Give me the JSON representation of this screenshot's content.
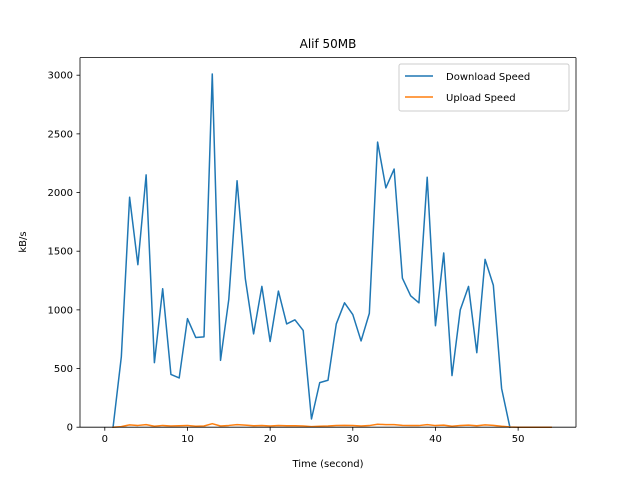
{
  "chart_data": {
    "type": "line",
    "title": "Alif 50MB",
    "xlabel": "Time (second)",
    "ylabel": "kB/s",
    "xlim": [
      -3,
      57
    ],
    "ylim": [
      0,
      3150
    ],
    "xticks": [
      0,
      10,
      20,
      30,
      40,
      50
    ],
    "yticks": [
      0,
      500,
      1000,
      1500,
      2000,
      2500,
      3000
    ],
    "grid": false,
    "legend": "top-right",
    "series": [
      {
        "name": "Download Speed",
        "color": "#1f77b4",
        "x": [
          1,
          2,
          3,
          4,
          5,
          6,
          7,
          8,
          9,
          10,
          11,
          12,
          13,
          14,
          15,
          16,
          17,
          18,
          19,
          20,
          21,
          22,
          23,
          24,
          25,
          26,
          27,
          28,
          29,
          30,
          31,
          32,
          33,
          34,
          35,
          36,
          37,
          38,
          39,
          40,
          41,
          42,
          43,
          44,
          45,
          46,
          47,
          48,
          49
        ],
        "y": [
          0,
          600,
          1960,
          1385,
          2150,
          550,
          1180,
          450,
          420,
          925,
          765,
          770,
          3010,
          570,
          1090,
          2100,
          1265,
          795,
          1200,
          730,
          1160,
          880,
          915,
          825,
          70,
          380,
          400,
          880,
          1060,
          960,
          735,
          970,
          2430,
          2040,
          2200,
          1270,
          1120,
          1060,
          2130,
          865,
          1485,
          440,
          1000,
          1200,
          635,
          1430,
          1210,
          330,
          0
        ]
      },
      {
        "name": "Upload Speed",
        "color": "#ff7f0e",
        "x": [
          1,
          2,
          3,
          4,
          5,
          6,
          7,
          8,
          9,
          10,
          11,
          12,
          13,
          14,
          15,
          16,
          17,
          18,
          19,
          20,
          21,
          22,
          23,
          24,
          25,
          26,
          27,
          28,
          29,
          30,
          31,
          32,
          33,
          34,
          35,
          36,
          37,
          38,
          39,
          40,
          41,
          42,
          43,
          44,
          45,
          46,
          47,
          48,
          49,
          50,
          51,
          52,
          53,
          54
        ],
        "y": [
          0,
          5,
          20,
          15,
          22,
          8,
          15,
          10,
          12,
          15,
          8,
          10,
          30,
          10,
          15,
          22,
          18,
          12,
          15,
          10,
          15,
          12,
          12,
          10,
          5,
          8,
          10,
          14,
          16,
          15,
          10,
          14,
          25,
          22,
          22,
          16,
          14,
          14,
          22,
          14,
          18,
          8,
          15,
          18,
          12,
          20,
          16,
          8,
          2,
          0,
          0,
          0,
          0,
          0
        ]
      }
    ]
  }
}
